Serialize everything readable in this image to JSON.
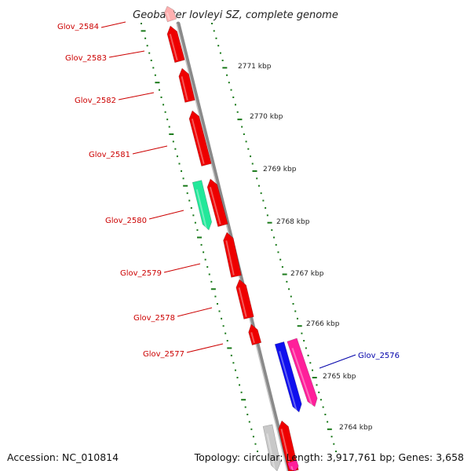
{
  "title": "Geobacter lovleyi SZ, complete genome",
  "footer": {
    "accession": "Accession: NC_010814",
    "topology": "Topology: circular; Length: 3,917,761 bp; Genes: 3,658"
  },
  "colors": {
    "background": "#ffffff",
    "backbone": "#8a8a8a",
    "backbone_highlight": "#c8c8c8",
    "tick": "#1a7a1a",
    "label_red": "#cc0000",
    "label_blue": "#0000aa"
  },
  "scale_ticks": [
    {
      "label": "2771 kbp"
    },
    {
      "label": "2770 kbp"
    },
    {
      "label": "2769 kbp"
    },
    {
      "label": "2768 kbp"
    },
    {
      "label": "2767 kbp"
    },
    {
      "label": "2766 kbp"
    },
    {
      "label": "2765 kbp"
    },
    {
      "label": "2764 kbp"
    }
  ],
  "genes": [
    {
      "id": "Glov_2584",
      "label": "Glov_2584",
      "color": "#ffb0b0",
      "strand": "reverse"
    },
    {
      "id": "Glov_2583",
      "label": "Glov_2583",
      "color": "#ee0000",
      "strand": "reverse"
    },
    {
      "id": "Glov_2582",
      "label": "Glov_2582",
      "color": "#ee0000",
      "strand": "reverse"
    },
    {
      "id": "Glov_2581",
      "label": "Glov_2581",
      "color": "#ee0000",
      "strand": "reverse"
    },
    {
      "id": "Glov_2580",
      "label": "Glov_2580",
      "color": "#ee0000",
      "strand": "reverse"
    },
    {
      "id": "Glov_2579",
      "label": "Glov_2579",
      "color": "#ee0000",
      "strand": "reverse"
    },
    {
      "id": "Glov_2578",
      "label": "Glov_2578",
      "color": "#ee0000",
      "strand": "reverse"
    },
    {
      "id": "Glov_2577",
      "label": "Glov_2577",
      "color": "#ee0000",
      "strand": "reverse"
    },
    {
      "id": "Glov_2576",
      "label": "Glov_2576",
      "color": "#ff1f9a",
      "strand": "forward"
    }
  ],
  "features": [
    {
      "id": "green-feature",
      "color": "#22e89a"
    },
    {
      "id": "blue-feature",
      "color": "#1010ee"
    },
    {
      "id": "gray-feature",
      "color": "#c8c8c8"
    },
    {
      "id": "bottom-red-feature",
      "color": "#ee0000"
    },
    {
      "id": "bottom-pink-feature",
      "color": "#ff1f9a"
    }
  ]
}
